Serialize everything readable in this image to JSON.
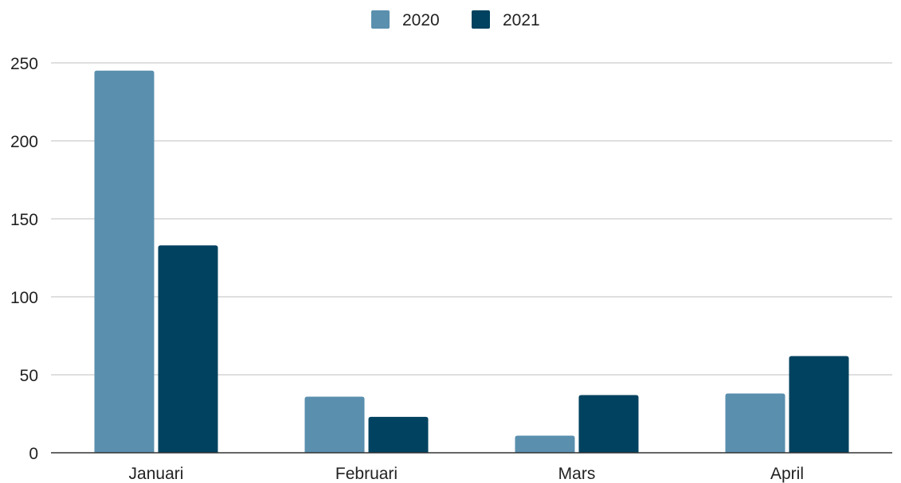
{
  "chart_data": {
    "type": "bar",
    "title": "",
    "xlabel": "",
    "ylabel": "",
    "categories": [
      "Januari",
      "Februari",
      "Mars",
      "April"
    ],
    "series": [
      {
        "name": "2020",
        "color": "#5a8fae",
        "values": [
          245,
          36,
          11,
          38
        ]
      },
      {
        "name": "2021",
        "color": "#00425f",
        "values": [
          133,
          23,
          37,
          62
        ]
      }
    ],
    "ylim": [
      0,
      250
    ],
    "yticks": [
      "0",
      "50",
      "100",
      "150",
      "200",
      "250"
    ],
    "grid": true,
    "legend_position": "top-center"
  }
}
